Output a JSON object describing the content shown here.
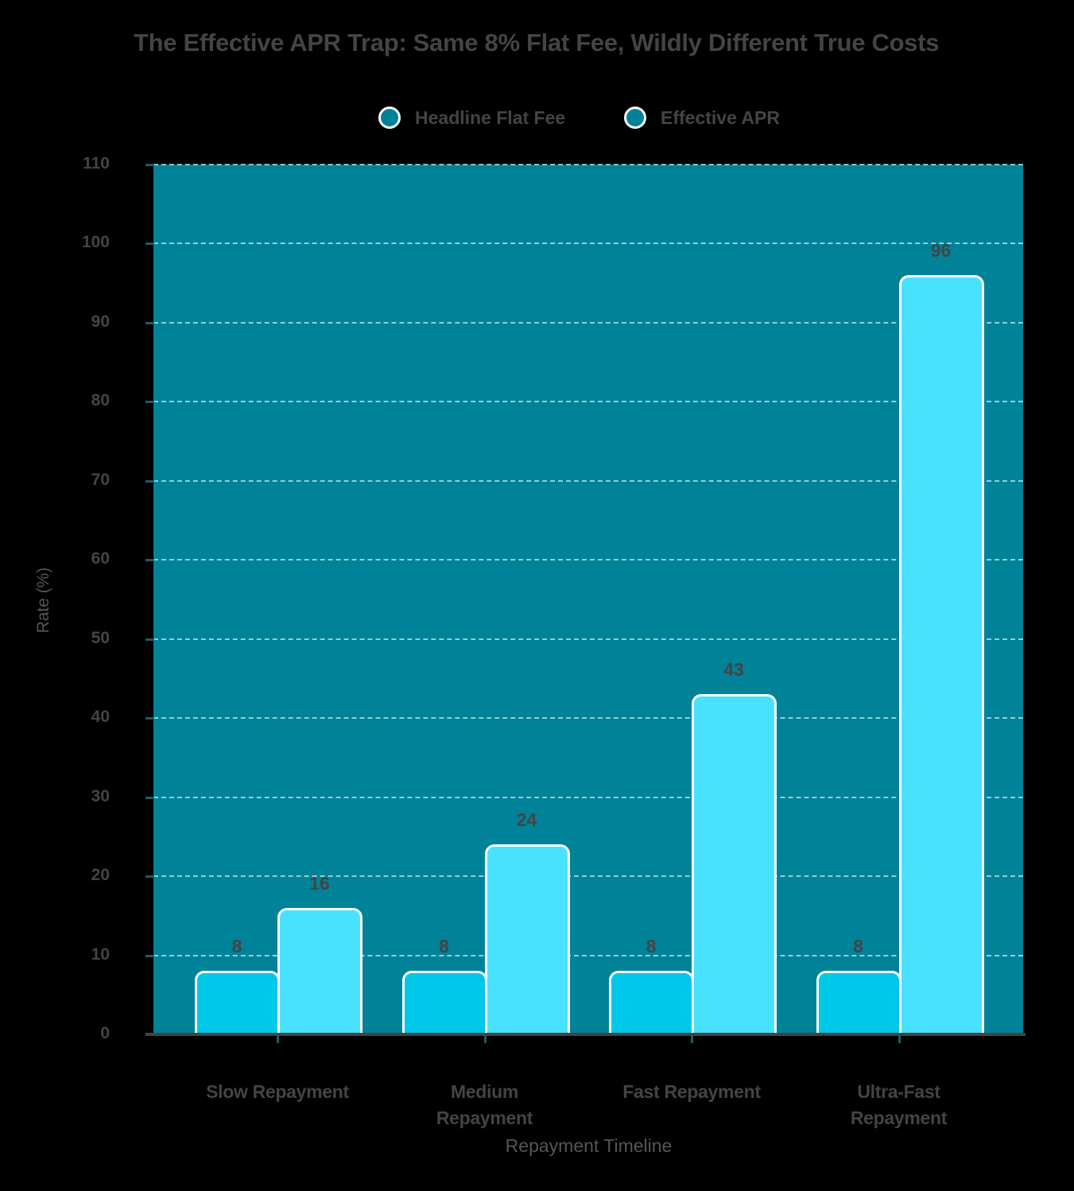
{
  "chart_data": {
    "type": "bar",
    "title": "The Effective APR Trap: Same 8% Flat Fee, Wildly Different True Costs",
    "xlabel": "Repayment Timeline",
    "ylabel": "Rate (%)",
    "categories": [
      "Slow Repayment",
      "Medium Repayment",
      "Fast Repayment",
      "Ultra-Fast Repayment"
    ],
    "category_lines": [
      [
        "Slow Repayment"
      ],
      [
        "Medium",
        "Repayment"
      ],
      [
        "Fast Repayment"
      ],
      [
        "Ultra-Fast",
        "Repayment"
      ]
    ],
    "series": [
      {
        "name": "Headline Flat Fee",
        "values": [
          8,
          8,
          8,
          8
        ],
        "color": "#00c8e8"
      },
      {
        "name": "Effective APR",
        "values": [
          16,
          24,
          43,
          96
        ],
        "color": "#48e2ff"
      }
    ],
    "ylim": [
      0,
      110
    ],
    "yticks": [
      0,
      10,
      20,
      30,
      40,
      50,
      60,
      70,
      80,
      90,
      100,
      110
    ],
    "grid": true,
    "legend_position": "top",
    "data_labels": true,
    "plot_background": "#008299"
  },
  "legend": {
    "items": [
      {
        "label": "Headline Flat Fee",
        "swatch_color": "#008299"
      },
      {
        "label": "Effective APR",
        "swatch_color": "#008299"
      }
    ]
  }
}
